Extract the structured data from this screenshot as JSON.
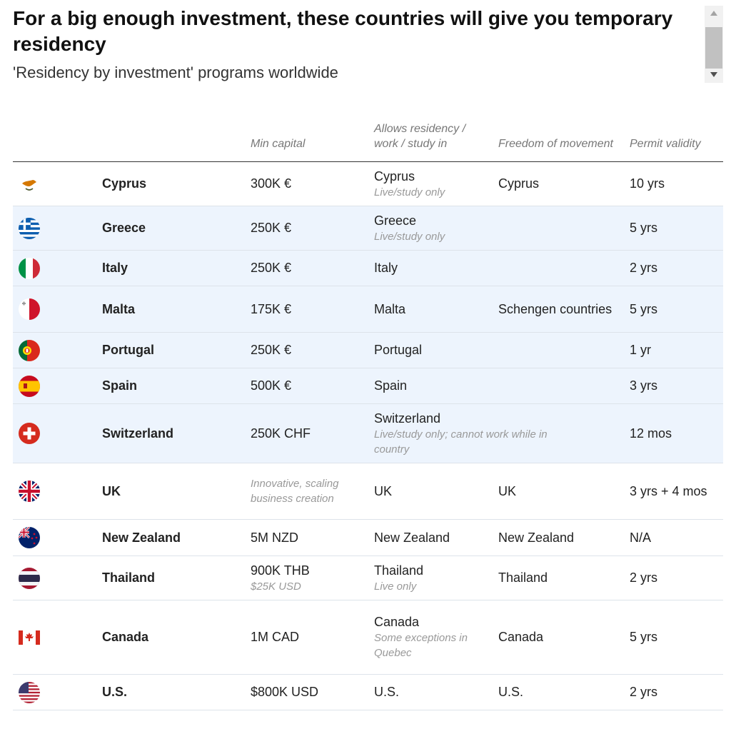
{
  "title": "For a big enough investment, these countries will give you temporary residency",
  "subtitle": "'Residency by investment' programs worldwide",
  "columns": {
    "min_capital": "Min capital",
    "allows": "Allows residency / work / study in",
    "freedom": "Freedom of movement",
    "validity": "Permit validity"
  },
  "rows": [
    {
      "flag": "cyprus-flag-icon",
      "country": "Cyprus",
      "capital": "300K €",
      "capital_note": "",
      "allows": "Cyprus",
      "allows_note": "Live/study only",
      "freedom": "Cyprus",
      "validity": "10 yrs",
      "highlight": false
    },
    {
      "flag": "greece-flag-icon",
      "country": "Greece",
      "capital": "250K €",
      "capital_note": "",
      "allows": "Greece",
      "allows_note": "Live/study only",
      "freedom": "",
      "validity": "5 yrs",
      "highlight": true
    },
    {
      "flag": "italy-flag-icon",
      "country": "Italy",
      "capital": "250K €",
      "capital_note": "",
      "allows": "Italy",
      "allows_note": "",
      "freedom": "",
      "validity": "2 yrs",
      "highlight": true
    },
    {
      "flag": "malta-flag-icon",
      "country": "Malta",
      "capital": "175K €",
      "capital_note": "",
      "allows": "Malta",
      "allows_note": "",
      "freedom": "Schengen countries",
      "validity": "5 yrs",
      "highlight": true
    },
    {
      "flag": "portugal-flag-icon",
      "country": "Portugal",
      "capital": "250K €",
      "capital_note": "",
      "allows": "Portugal",
      "allows_note": "",
      "freedom": "",
      "validity": "1 yr",
      "highlight": true
    },
    {
      "flag": "spain-flag-icon",
      "country": "Spain",
      "capital": "500K €",
      "capital_note": "",
      "allows": "Spain",
      "allows_note": "",
      "freedom": "",
      "validity": "3 yrs",
      "highlight": true
    },
    {
      "flag": "switzerland-flag-icon",
      "country": "Switzerland",
      "capital": "250K CHF",
      "capital_note": "",
      "allows": "Switzerland",
      "allows_note": "Live/study only; cannot work while in country",
      "freedom": "",
      "validity": "12 mos",
      "highlight": true
    },
    {
      "flag": "uk-flag-icon",
      "country": "UK",
      "capital": "",
      "capital_note": "Innovative, scaling business creation",
      "allows": "UK",
      "allows_note": "",
      "freedom": "UK",
      "validity": "3 yrs + 4 mos",
      "highlight": false
    },
    {
      "flag": "new-zealand-flag-icon",
      "country": "New Zealand",
      "capital": "5M NZD",
      "capital_note": "",
      "allows": "New Zealand",
      "allows_note": "",
      "freedom": "New Zealand",
      "validity": "N/A",
      "highlight": false
    },
    {
      "flag": "thailand-flag-icon",
      "country": "Thailand",
      "capital": "900K THB",
      "capital_note": "$25K USD",
      "allows": "Thailand",
      "allows_note": "Live only",
      "freedom": "Thailand",
      "validity": "2 yrs",
      "highlight": false
    },
    {
      "flag": "canada-flag-icon",
      "country": "Canada",
      "capital": "1M CAD",
      "capital_note": "",
      "allows": "Canada",
      "allows_note": "Some exceptions in Quebec",
      "freedom": "Canada",
      "validity": "5 yrs",
      "highlight": false
    },
    {
      "flag": "us-flag-icon",
      "country": "U.S.",
      "capital": "$800K USD",
      "capital_note": "",
      "allows": "U.S.",
      "allows_note": "",
      "freedom": "U.S.",
      "validity": "2 yrs",
      "highlight": false
    }
  ],
  "colors": {
    "highlight_row": "#edf4fd",
    "header_rule": "#333333",
    "row_rule": "#dde3ea"
  }
}
